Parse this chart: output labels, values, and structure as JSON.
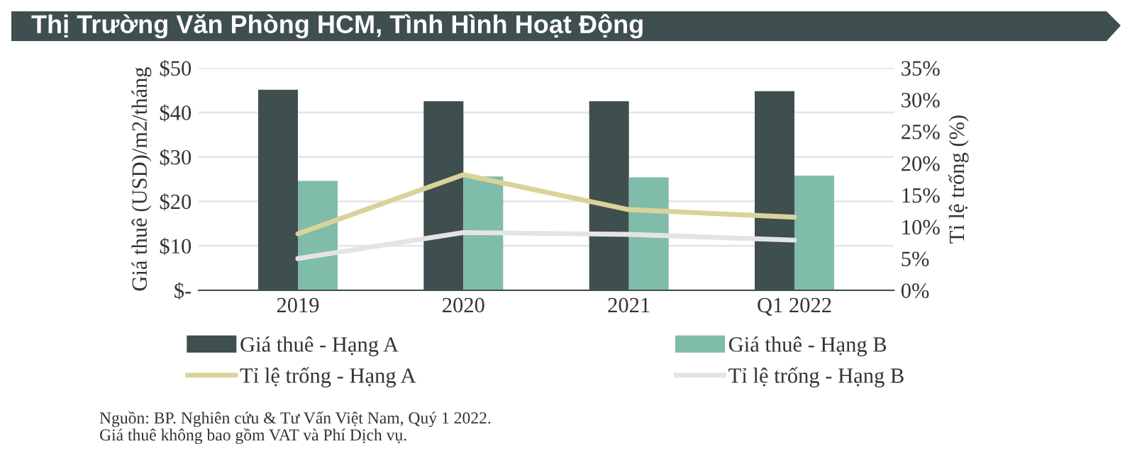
{
  "chart_data": {
    "type": "bar",
    "title": "Thị Trường Văn Phòng HCM, Tình Hình Hoạt Động",
    "categories": [
      "2019",
      "2020",
      "2021",
      "Q1 2022"
    ],
    "series": [
      {
        "name": "Giá thuê - Hạng A",
        "color": "#3f4e4f",
        "values": [
          45.1,
          42.5,
          42.5,
          44.8
        ]
      },
      {
        "name": "Giá thuê - Hạng B",
        "color": "#7fbcaa",
        "values": [
          24.6,
          25.6,
          25.4,
          25.8
        ]
      },
      {
        "name": "Tỉ lệ trống - Hạng A",
        "type": "line",
        "axis": "y2",
        "color": "#d9d39a",
        "values": [
          8.9,
          18.2,
          12.7,
          11.5
        ]
      },
      {
        "name": "Tỉ lệ trống - Hạng B",
        "type": "line",
        "axis": "y2",
        "color": "#e4e4e4",
        "values": [
          5.0,
          9.1,
          8.8,
          7.9
        ]
      }
    ],
    "ylabel": "Giá thuê (USD)/m2/tháng",
    "y2label": "Tỉ lệ trống (%)",
    "ylim": [
      0,
      50
    ],
    "yticks": [
      {
        "value": 0,
        "label": "$-"
      },
      {
        "value": 10,
        "label": "$10"
      },
      {
        "value": 20,
        "label": "$20"
      },
      {
        "value": 30,
        "label": "$30"
      },
      {
        "value": 40,
        "label": "$40"
      },
      {
        "value": 50,
        "label": "$50"
      }
    ],
    "y2lim": [
      0,
      35
    ],
    "y2ticks": [
      {
        "value": 0,
        "label": "0%"
      },
      {
        "value": 5,
        "label": "5%"
      },
      {
        "value": 10,
        "label": "10%"
      },
      {
        "value": 15,
        "label": "15%"
      },
      {
        "value": 20,
        "label": "20%"
      },
      {
        "value": 25,
        "label": "25%"
      },
      {
        "value": 30,
        "label": "30%"
      },
      {
        "value": 35,
        "label": "35%"
      }
    ],
    "grid": "y",
    "legend": "bottom",
    "annotations": [
      "Nguồn: BP. Nghiên cứu & Tư Vấn Việt Nam, Quý 1 2022.",
      "Giá thuê không bao gồm VAT và Phí Dịch vụ."
    ]
  }
}
